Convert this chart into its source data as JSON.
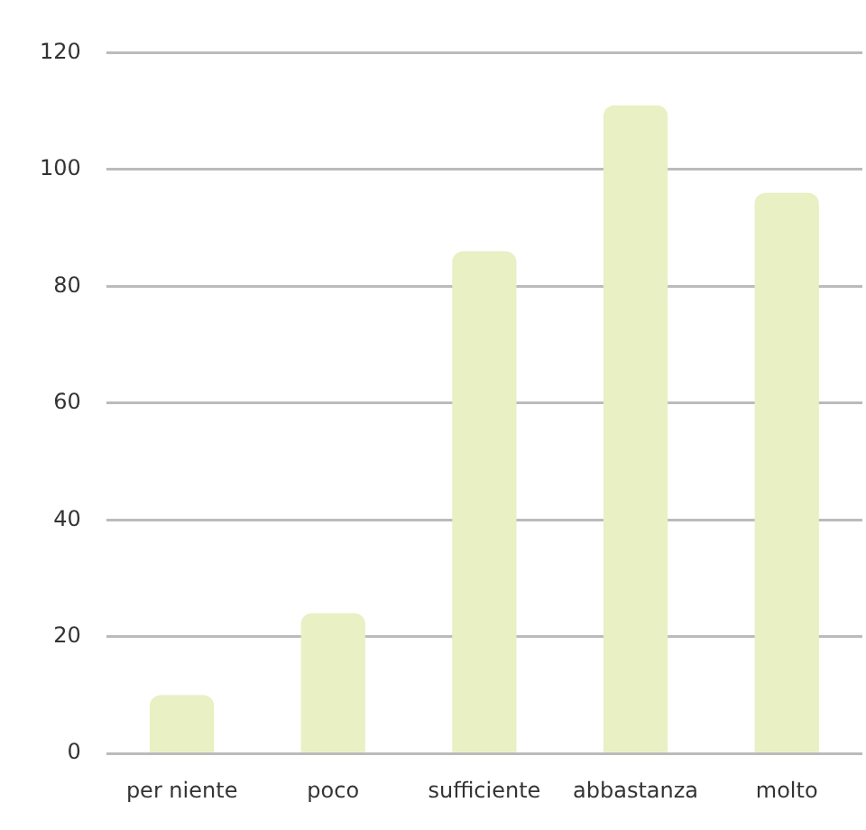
{
  "chart_data": {
    "type": "bar",
    "categories": [
      "per niente",
      "poco",
      "sufficiente",
      "abbastanza",
      "molto"
    ],
    "values": [
      10,
      24,
      86,
      111,
      96
    ],
    "color": "#e8f0c4",
    "ylim": [
      0,
      120
    ],
    "yticks": [
      0,
      20,
      40,
      60,
      80,
      100,
      120
    ],
    "grid": "y"
  }
}
